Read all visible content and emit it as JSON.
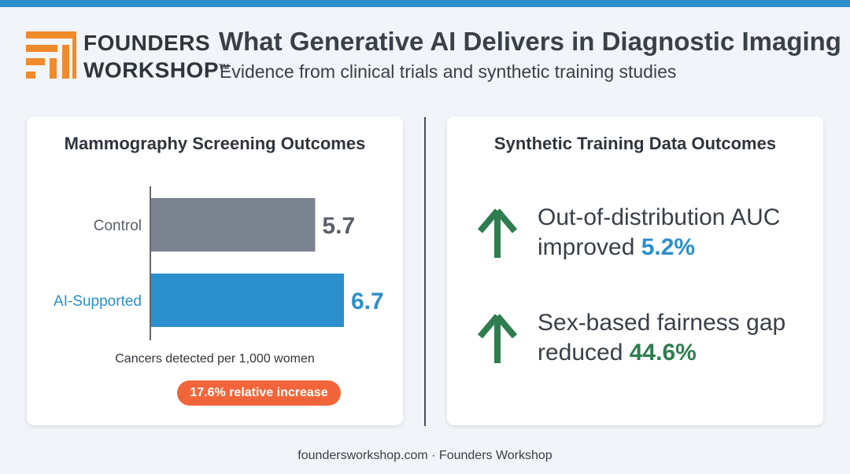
{
  "header": {
    "brand_line1": "FOUNDERS",
    "brand_line2": "WORKSHOP",
    "brand_tm": "TM",
    "title": "What Generative AI Delivers in Diagnostic Imaging",
    "subtitle": "Evidence from clinical trials and synthetic training studies"
  },
  "left_card": {
    "title": "Mammography Screening Outcomes",
    "caption": "Cancers detected per 1,000 women",
    "badge": "17.6% relative increase"
  },
  "right_card": {
    "title": "Synthetic Training Data Outcomes",
    "metrics": [
      {
        "line1": "Out-of-distribution AUC",
        "line2_prefix": "improved ",
        "value": "5.2%",
        "icon": "arrow-up-icon"
      },
      {
        "line1": "Sex-based fairness gap",
        "line2_prefix": "reduced ",
        "value": "44.6%",
        "icon": "arrow-up-icon"
      }
    ]
  },
  "footer": "foundersworkshop.com · Founders Workshop",
  "colors": {
    "accent_blue": "#2b8fcb",
    "control_gray": "#7b8290",
    "orange": "#f2653a",
    "green": "#2f7d4f"
  },
  "chart_data": {
    "type": "bar",
    "orientation": "horizontal",
    "title": "Mammography Screening Outcomes",
    "categories": [
      "Control",
      "AI-Supported"
    ],
    "values": [
      5.7,
      6.7
    ],
    "value_labels": [
      "5.7",
      "6.7"
    ],
    "xlabel": "Cancers detected per 1,000 women",
    "xlim": [
      0,
      6.7
    ],
    "bar_colors": [
      "#7b8290",
      "#2b8fcb"
    ],
    "label_colors": [
      "#5a606a",
      "#2b8fcb"
    ],
    "grid": false,
    "legend": "none"
  }
}
